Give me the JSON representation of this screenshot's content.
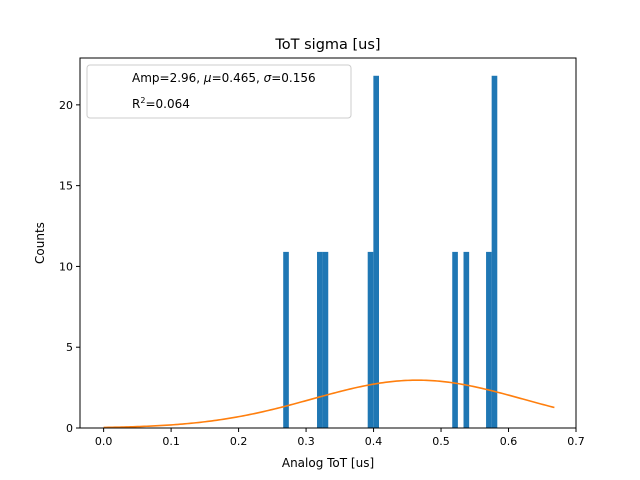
{
  "chart_data": {
    "type": "bar",
    "title": "ToT sigma [us]",
    "xlabel": "Analog ToT [us]",
    "ylabel": "Counts",
    "xlim": [
      -0.035,
      0.7
    ],
    "ylim": [
      0,
      22.9
    ],
    "xticks": [
      0.0,
      0.1,
      0.2,
      0.3,
      0.4,
      0.5,
      0.6,
      0.7
    ],
    "xtick_labels": [
      "0.0",
      "0.1",
      "0.2",
      "0.3",
      "0.4",
      "0.5",
      "0.6",
      "0.7"
    ],
    "yticks": [
      0,
      5,
      10,
      15,
      20
    ],
    "ytick_labels": [
      "0",
      "5",
      "10",
      "15",
      "20"
    ],
    "bin_width": 0.00835,
    "bars": [
      {
        "x": 0.2703,
        "value": 10.9
      },
      {
        "x": 0.3204,
        "value": 10.9
      },
      {
        "x": 0.3287,
        "value": 10.9
      },
      {
        "x": 0.3955,
        "value": 10.9
      },
      {
        "x": 0.4039,
        "value": 21.8
      },
      {
        "x": 0.5208,
        "value": 10.9
      },
      {
        "x": 0.5375,
        "value": 10.9
      },
      {
        "x": 0.5709,
        "value": 10.9
      },
      {
        "x": 0.5792,
        "value": 21.8
      }
    ],
    "bar_color": "#1f77b4",
    "fit": {
      "type": "gaussian",
      "amp": 2.96,
      "mu": 0.465,
      "sigma": 0.156,
      "x_range": [
        0.0,
        0.668
      ],
      "color": "#ff7f0e"
    },
    "legend": {
      "placement": "upper-left",
      "line1_prefix": "Amp=2.96, ",
      "mu_symbol": "μ",
      "mu_value": "=0.465, ",
      "sigma_symbol": "σ",
      "sigma_value": "=0.156",
      "r2_base": "R",
      "r2_exp": "2",
      "r2_value": "=0.064"
    },
    "grid": false
  }
}
